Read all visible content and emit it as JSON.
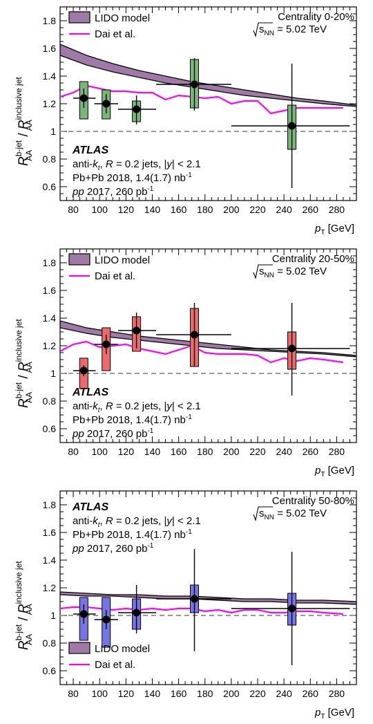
{
  "figure": {
    "atlas_label": "ATLAS",
    "jets_pre": "anti-",
    "jets_k": "k",
    "jets_t": "t",
    "jets_mid": ", ",
    "jets_R": "R",
    "jets_post": " = 0.2 jets, |",
    "jets_y": "y",
    "jets_end": "| < 2.1",
    "pbpb_text": "Pb+Pb 2018, 1.4(1.7) nb",
    "pbpb_sup": "-1",
    "pp_italic": "pp",
    "pp_text": " 2017, 260 pb",
    "pp_sup": "-1",
    "sqrt_s_label": "s",
    "sqrt_s_sub": "NN",
    "sqrt_s_value": " = 5.02 TeV",
    "legend_model": "LIDO model",
    "legend_dai": "Dai et al.",
    "ylabel_R": "R",
    "ylabel_num_sup": "b-jet",
    "ylabel_sub": "AA",
    "ylabel_slash": " / ",
    "ylabel_den_sup": "inclusive jet",
    "xlabel_p": "p",
    "xlabel_sub": "T",
    "xlabel_unit": " [GeV]"
  },
  "colors": {
    "band_fill": "#a07aa6",
    "dai_line": "#ff00ff",
    "green": "#77b877",
    "red": "#ee6a6a",
    "blue": "#7575e6",
    "dashed_ref": "#999999"
  },
  "chart_data": [
    {
      "type": "scatter",
      "centrality": "Centrality 0-20%",
      "series_color_key": "green",
      "xlim": [
        70,
        295
      ],
      "ylim": [
        0.5,
        1.9
      ],
      "xticks": [
        80,
        100,
        120,
        140,
        160,
        180,
        200,
        220,
        240,
        260,
        280
      ],
      "yticks": [
        0.6,
        0.8,
        1,
        1.2,
        1.4,
        1.6,
        1.8
      ],
      "legend_position": "top-left",
      "reference_line": 1.0,
      "points": [
        {
          "x": 88,
          "y": 1.24,
          "xlo": 80,
          "xhi": 97,
          "stat_lo": 1.17,
          "stat_hi": 1.31,
          "sys_lo": 1.09,
          "sys_hi": 1.36
        },
        {
          "x": 105,
          "y": 1.2,
          "xlo": 96,
          "xhi": 114,
          "stat_lo": 1.13,
          "stat_hi": 1.27,
          "sys_lo": 1.09,
          "sys_hi": 1.3
        },
        {
          "x": 128,
          "y": 1.16,
          "xlo": 114,
          "xhi": 143,
          "stat_lo": 1.05,
          "stat_hi": 1.26,
          "sys_lo": 1.07,
          "sys_hi": 1.22
        },
        {
          "x": 172,
          "y": 1.34,
          "xlo": 143,
          "xhi": 200,
          "stat_lo": 1.15,
          "stat_hi": 1.53,
          "sys_lo": 1.17,
          "sys_hi": 1.52
        },
        {
          "x": 246,
          "y": 1.04,
          "xlo": 200,
          "xhi": 290,
          "stat_lo": 0.59,
          "stat_hi": 1.49,
          "sys_lo": 0.87,
          "sys_hi": 1.19
        }
      ],
      "lido_band": {
        "x": [
          70,
          90,
          110,
          130,
          150,
          170,
          190,
          210,
          230,
          250,
          270,
          295
        ],
        "lo": [
          1.55,
          1.48,
          1.43,
          1.39,
          1.35,
          1.32,
          1.29,
          1.26,
          1.24,
          1.22,
          1.2,
          1.18
        ],
        "hi": [
          1.63,
          1.55,
          1.49,
          1.44,
          1.4,
          1.36,
          1.33,
          1.3,
          1.27,
          1.24,
          1.22,
          1.19
        ]
      },
      "dai": {
        "x": [
          70,
          80,
          90,
          100,
          110,
          120,
          130,
          140,
          150,
          160,
          170,
          180,
          190,
          200,
          210,
          220,
          230,
          240,
          250,
          260,
          270,
          285
        ],
        "y": [
          1.25,
          1.28,
          1.33,
          1.31,
          1.29,
          1.29,
          1.28,
          1.28,
          1.23,
          1.26,
          1.25,
          1.24,
          1.25,
          1.2,
          1.22,
          1.22,
          1.13,
          1.15,
          1.17,
          1.17,
          1.17,
          1.17
        ]
      }
    },
    {
      "type": "scatter",
      "centrality": "Centrality 20-50%",
      "series_color_key": "red",
      "xlim": [
        70,
        295
      ],
      "ylim": [
        0.5,
        1.9
      ],
      "xticks": [
        80,
        100,
        120,
        140,
        160,
        180,
        200,
        220,
        240,
        260,
        280
      ],
      "yticks": [
        0.6,
        0.8,
        1,
        1.2,
        1.4,
        1.6,
        1.8
      ],
      "legend_position": "top-left",
      "reference_line": 1.0,
      "points": [
        {
          "x": 88,
          "y": 1.02,
          "xlo": 80,
          "xhi": 97,
          "stat_lo": 0.98,
          "stat_hi": 1.06,
          "sys_lo": 0.89,
          "sys_hi": 1.11
        },
        {
          "x": 105,
          "y": 1.21,
          "xlo": 96,
          "xhi": 114,
          "stat_lo": 1.14,
          "stat_hi": 1.28,
          "sys_lo": 1.02,
          "sys_hi": 1.33
        },
        {
          "x": 128,
          "y": 1.31,
          "xlo": 114,
          "xhi": 143,
          "stat_lo": 1.18,
          "stat_hi": 1.44,
          "sys_lo": 1.16,
          "sys_hi": 1.41
        },
        {
          "x": 172,
          "y": 1.28,
          "xlo": 143,
          "xhi": 200,
          "stat_lo": 1.05,
          "stat_hi": 1.51,
          "sys_lo": 1.05,
          "sys_hi": 1.47
        },
        {
          "x": 246,
          "y": 1.18,
          "xlo": 200,
          "xhi": 290,
          "stat_lo": 0.84,
          "stat_hi": 1.51,
          "sys_lo": 1.03,
          "sys_hi": 1.3
        }
      ],
      "lido_band": {
        "x": [
          70,
          90,
          110,
          130,
          150,
          170,
          190,
          210,
          230,
          250,
          270,
          295
        ],
        "lo": [
          1.33,
          1.29,
          1.26,
          1.24,
          1.22,
          1.2,
          1.18,
          1.17,
          1.16,
          1.15,
          1.14,
          1.12
        ],
        "hi": [
          1.38,
          1.33,
          1.3,
          1.27,
          1.25,
          1.23,
          1.21,
          1.19,
          1.17,
          1.16,
          1.15,
          1.13
        ]
      },
      "dai": {
        "x": [
          70,
          80,
          90,
          100,
          110,
          120,
          130,
          140,
          150,
          160,
          170,
          180,
          190,
          200,
          210,
          220,
          230,
          240,
          250,
          260,
          270,
          285
        ],
        "y": [
          1.16,
          1.21,
          1.23,
          1.19,
          1.2,
          1.21,
          1.18,
          1.16,
          1.14,
          1.17,
          1.2,
          1.15,
          1.14,
          1.14,
          1.14,
          1.13,
          1.08,
          1.11,
          1.09,
          1.11,
          1.1,
          1.08
        ]
      }
    },
    {
      "type": "scatter",
      "centrality": "Centrality 50-80%",
      "series_color_key": "blue",
      "xlim": [
        70,
        295
      ],
      "ylim": [
        0.5,
        1.9
      ],
      "xticks": [
        80,
        100,
        120,
        140,
        160,
        180,
        200,
        220,
        240,
        260,
        280
      ],
      "yticks": [
        0.6,
        0.8,
        1,
        1.2,
        1.4,
        1.6,
        1.8
      ],
      "legend_position": "bottom-left",
      "reference_line": 1.0,
      "points": [
        {
          "x": 88,
          "y": 1.01,
          "xlo": 80,
          "xhi": 97,
          "stat_lo": 0.94,
          "stat_hi": 1.08,
          "sys_lo": 0.82,
          "sys_hi": 1.13
        },
        {
          "x": 105,
          "y": 0.97,
          "xlo": 96,
          "xhi": 114,
          "stat_lo": 0.9,
          "stat_hi": 1.04,
          "sys_lo": 0.77,
          "sys_hi": 1.13
        },
        {
          "x": 128,
          "y": 1.02,
          "xlo": 114,
          "xhi": 143,
          "stat_lo": 0.87,
          "stat_hi": 1.22,
          "sys_lo": 0.9,
          "sys_hi": 1.12
        },
        {
          "x": 172,
          "y": 1.12,
          "xlo": 143,
          "xhi": 200,
          "stat_lo": 0.74,
          "stat_hi": 1.48,
          "sys_lo": 1.02,
          "sys_hi": 1.22
        },
        {
          "x": 246,
          "y": 1.05,
          "xlo": 200,
          "xhi": 290,
          "stat_lo": 0.64,
          "stat_hi": 1.46,
          "sys_lo": 0.93,
          "sys_hi": 1.16
        }
      ],
      "lido_band": {
        "x": [
          70,
          90,
          110,
          130,
          150,
          170,
          190,
          210,
          230,
          250,
          270,
          295
        ],
        "lo": [
          1.15,
          1.14,
          1.14,
          1.13,
          1.12,
          1.12,
          1.11,
          1.1,
          1.1,
          1.09,
          1.09,
          1.08
        ],
        "hi": [
          1.17,
          1.16,
          1.15,
          1.15,
          1.14,
          1.14,
          1.13,
          1.12,
          1.12,
          1.11,
          1.11,
          1.1
        ]
      },
      "dai": {
        "x": [
          70,
          80,
          90,
          100,
          110,
          120,
          130,
          140,
          150,
          160,
          170,
          180,
          190,
          200,
          210,
          220,
          230,
          240,
          250,
          260,
          270,
          285
        ],
        "y": [
          1.05,
          1.06,
          1.06,
          1.05,
          1.04,
          1.05,
          1.04,
          1.05,
          1.04,
          1.05,
          1.05,
          1.03,
          1.04,
          1.02,
          1.04,
          1.04,
          1.02,
          1.02,
          1.03,
          1.03,
          1.02,
          1.01
        ]
      }
    }
  ]
}
